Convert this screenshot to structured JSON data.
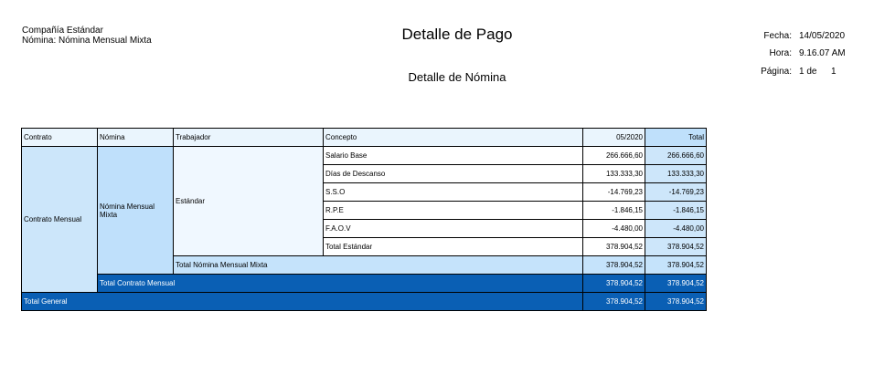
{
  "header": {
    "company": "Compañía Estándar",
    "payroll_line": "Nómina: Nómina Mensual Mixta",
    "title": "Detalle de Pago",
    "subtitle": "Detalle de Nómina",
    "date_label": "Fecha:",
    "date": "14/05/2020",
    "time_label": "Hora:",
    "time": "9.16.07 AM",
    "page_label": "Página:",
    "page": "1 de",
    "page_total": "1"
  },
  "table": {
    "columns": [
      "Contrato",
      "Nómina",
      "Trabajador",
      "Concepto",
      "05/2020",
      "Total"
    ],
    "contract": "Contrato Mensual",
    "payroll": "Nómina Mensual Mixta",
    "worker": "Estándar",
    "concepts": [
      {
        "name": "Salario Base",
        "period": "266.666,60",
        "total": "266.666,60"
      },
      {
        "name": "Días de Descanso",
        "period": "133.333,30",
        "total": "133.333,30"
      },
      {
        "name": "S.S.O",
        "period": "-14.769,23",
        "total": "-14.769,23"
      },
      {
        "name": "R.P.E",
        "period": "-1.846,15",
        "total": "-1.846,15"
      },
      {
        "name": "F.A.O.V",
        "period": "-4.480,00",
        "total": "-4.480,00"
      }
    ],
    "worker_total": {
      "label": "Total Estándar",
      "period": "378.904,52",
      "total": "378.904,52"
    },
    "payroll_total": {
      "label": "Total Nómina Mensual Mixta",
      "period": "378.904,52",
      "total": "378.904,52"
    },
    "contract_total": {
      "label": "Total Contrato Mensual",
      "period": "378.904,52",
      "total": "378.904,52"
    },
    "grand_total": {
      "label": "Total General",
      "period": "378.904,52",
      "total": "378.904,52"
    }
  }
}
